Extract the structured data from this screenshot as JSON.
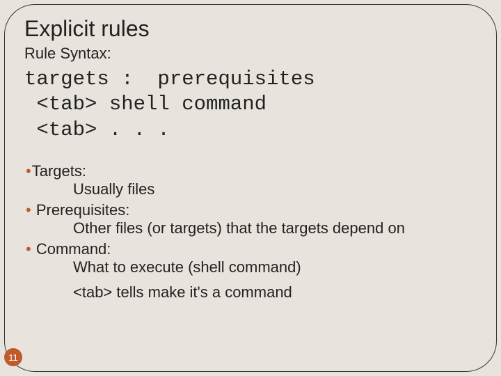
{
  "title": "Explicit rules",
  "subtitle": "Rule Syntax:",
  "code": {
    "line1": "targets :  prerequisites",
    "line2": " <tab> shell command",
    "line3": " <tab> . . ."
  },
  "items": [
    {
      "term": "Targets:",
      "desc": "Usually files"
    },
    {
      "term": " Prerequisites:",
      "desc": "Other files (or targets) that the targets depend on"
    },
    {
      "term": " Command:",
      "desc": "What to execute (shell command)"
    }
  ],
  "note": "<tab> tells make it's a command",
  "bullet_color": "#c15a2a",
  "page_number": "11",
  "background_color": "#e8e4dd",
  "border_color": "#333333",
  "text_color": "#222222"
}
